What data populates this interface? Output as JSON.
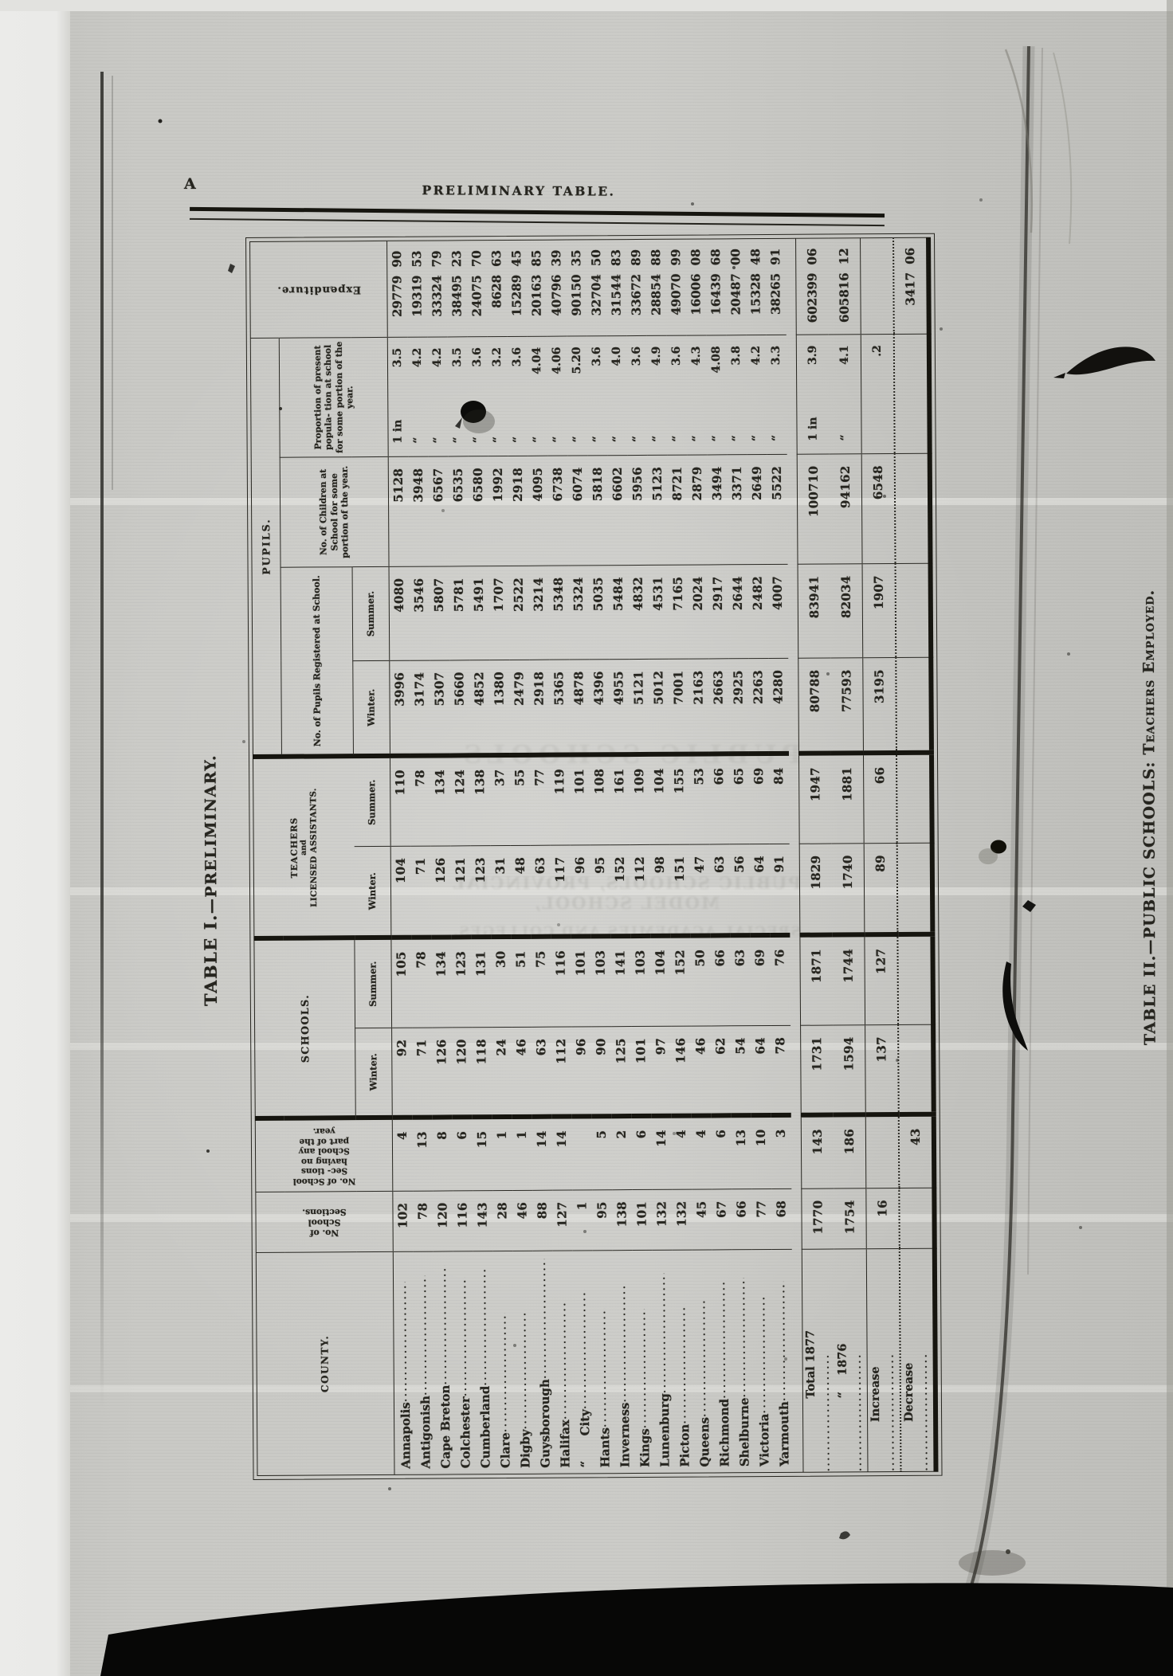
{
  "page": {
    "corner_letter": "A",
    "running_title": "PRELIMINARY TABLE.",
    "table1_title_main": "TABLE I.",
    "table1_title_rest": "—PRELIMINARY.",
    "table2_title_main": "TABLE II.",
    "table2_title_rest": "—PUBLIC SCHOOLS:  ",
    "table2_title_smallcaps": "Teachers Employed.",
    "bleedthrough": {
      "big": "PUBLIC SCHOOLS",
      "line1": "PUBLIC SCHOOLS, PROVINCIAL MODEL SCHOOL,",
      "line2": "SPECIAL ACADEMIES AND COLLEGES."
    }
  },
  "table": {
    "headers": {
      "county": "COUNTY.",
      "sections": "No. of School Sections.",
      "no_school": "No. of School Sec- tions having no School any part of the year.",
      "schools": "SCHOOLS.",
      "teachers_l1": "TEACHERS",
      "teachers_l2": "and",
      "teachers_l3": "LICENSED ASSISTANTS.",
      "pupils": "PUPILS.",
      "registered": "No. of Pupils Registered at School.",
      "children": "No. of Children at School for some portion of the year.",
      "proportion": "Proportion of present popula- tion at school for some portion of the year.",
      "expenditure": "Expenditure.",
      "winter": "Winter.",
      "summer": "Summer."
    },
    "rows": [
      {
        "name": "Annapolis",
        "sec": "102",
        "ns": "4",
        "sw": "92",
        "ss": "105",
        "tw": "104",
        "ts": "110",
        "pw": "3996",
        "ps": "4080",
        "ch": "5128",
        "pl": "1 in",
        "pv": "3.5",
        "ed": "29779",
        "ec": "90"
      },
      {
        "name": "Antigonish",
        "sec": "78",
        "ns": "13",
        "sw": "71",
        "ss": "78",
        "tw": "71",
        "ts": "78",
        "pw": "3174",
        "ps": "3546",
        "ch": "3948",
        "pl": "“",
        "pv": "4.2",
        "ed": "19319",
        "ec": "53"
      },
      {
        "name": "Cape Breton",
        "sec": "120",
        "ns": "8",
        "sw": "126",
        "ss": "134",
        "tw": "126",
        "ts": "134",
        "pw": "5307",
        "ps": "5807",
        "ch": "6567",
        "pl": "“",
        "pv": "4.2",
        "ed": "33324",
        "ec": "79"
      },
      {
        "name": "Colchester",
        "sec": "116",
        "ns": "6",
        "sw": "120",
        "ss": "123",
        "tw": "121",
        "ts": "124",
        "pw": "5660",
        "ps": "5781",
        "ch": "6535",
        "pl": "“",
        "pv": "3.5",
        "ed": "38495",
        "ec": "23"
      },
      {
        "name": "Cumberland",
        "sec": "143",
        "ns": "15",
        "sw": "118",
        "ss": "131",
        "tw": "123",
        "ts": "138",
        "pw": "4852",
        "ps": "5491",
        "ch": "6580",
        "pl": "“",
        "pv": "3.6",
        "ed": "24075",
        "ec": "70"
      },
      {
        "name": "Clare",
        "sec": "28",
        "ns": "1",
        "sw": "24",
        "ss": "30",
        "tw": "31",
        "ts": "37",
        "pw": "1380",
        "ps": "1707",
        "ch": "1992",
        "pl": "“",
        "pv": "3.2",
        "ed": "8628",
        "ec": "63"
      },
      {
        "name": "Digby",
        "sec": "46",
        "ns": "1",
        "sw": "46",
        "ss": "51",
        "tw": "48",
        "ts": "55",
        "pw": "2479",
        "ps": "2522",
        "ch": "2918",
        "pl": "“",
        "pv": "3.6",
        "ed": "15289",
        "ec": "45"
      },
      {
        "name": "Guysborough",
        "sec": "88",
        "ns": "14",
        "sw": "63",
        "ss": "75",
        "tw": "63",
        "ts": "77",
        "pw": "2918",
        "ps": "3214",
        "ch": "4095",
        "pl": "“",
        "pv": "4.04",
        "ed": "20163",
        "ec": "85"
      },
      {
        "name": "Halifax",
        "sec": "127",
        "ns": "14",
        "sw": "112",
        "ss": "116",
        "tw": "117",
        "ts": "119",
        "pw": "5365",
        "ps": "5348",
        "ch": "6738",
        "pl": "“",
        "pv": "4.06",
        "ed": "40796",
        "ec": "39"
      },
      {
        "name": "“      City",
        "sec": "1",
        "ns": "",
        "sw": "96",
        "ss": "101",
        "tw": "96",
        "ts": "101",
        "pw": "4878",
        "ps": "5324",
        "ch": "6074",
        "pl": "“",
        "pv": "5.20",
        "ed": "90150",
        "ec": "35"
      },
      {
        "name": "Hants",
        "sec": "95",
        "ns": "5",
        "sw": "90",
        "ss": "103",
        "tw": "95",
        "ts": "108",
        "pw": "4396",
        "ps": "5035",
        "ch": "5818",
        "pl": "“",
        "pv": "3.6",
        "ed": "32704",
        "ec": "50"
      },
      {
        "name": "Inverness",
        "sec": "138",
        "ns": "2",
        "sw": "125",
        "ss": "141",
        "tw": "152",
        "ts": "161",
        "pw": "4955",
        "ps": "5484",
        "ch": "6602",
        "pl": "“",
        "pv": "4.0",
        "ed": "31544",
        "ec": "83"
      },
      {
        "name": "Kings",
        "sec": "101",
        "ns": "6",
        "sw": "101",
        "ss": "103",
        "tw": "112",
        "ts": "109",
        "pw": "5121",
        "ps": "4832",
        "ch": "5956",
        "pl": "“",
        "pv": "3.6",
        "ed": "33672",
        "ec": "89"
      },
      {
        "name": "Lunenburg",
        "sec": "132",
        "ns": "14",
        "sw": "97",
        "ss": "104",
        "tw": "98",
        "ts": "104",
        "pw": "5012",
        "ps": "4531",
        "ch": "5123",
        "pl": "“",
        "pv": "4.9",
        "ed": "28854",
        "ec": "88"
      },
      {
        "name": "Picton",
        "sec": "132",
        "ns": "4",
        "sw": "146",
        "ss": "152",
        "tw": "151",
        "ts": "155",
        "pw": "7001",
        "ps": "7165",
        "ch": "8721",
        "pl": "“",
        "pv": "3.6",
        "ed": "49070",
        "ec": "99"
      },
      {
        "name": "Queens",
        "sec": "45",
        "ns": "4",
        "sw": "46",
        "ss": "50",
        "tw": "47",
        "ts": "53",
        "pw": "2163",
        "ps": "2024",
        "ch": "2879",
        "pl": "“",
        "pv": "4.3",
        "ed": "16006",
        "ec": "08"
      },
      {
        "name": "Richmond",
        "sec": "67",
        "ns": "6",
        "sw": "62",
        "ss": "66",
        "tw": "63",
        "ts": "66",
        "pw": "2663",
        "ps": "2917",
        "ch": "3494",
        "pl": "“",
        "pv": "4.08",
        "ed": "16439",
        "ec": "68"
      },
      {
        "name": "Shelburne",
        "sec": "66",
        "ns": "13",
        "sw": "54",
        "ss": "63",
        "tw": "56",
        "ts": "65",
        "pw": "2925",
        "ps": "2644",
        "ch": "3371",
        "pl": "“",
        "pv": "3.8",
        "ed": "20487",
        "ec": "00"
      },
      {
        "name": "Victoria",
        "sec": "77",
        "ns": "10",
        "sw": "64",
        "ss": "69",
        "tw": "64",
        "ts": "69",
        "pw": "2263",
        "ps": "2482",
        "ch": "2649",
        "pl": "“",
        "pv": "4.2",
        "ed": "15328",
        "ec": "48"
      },
      {
        "name": "Yarmouth",
        "sec": "68",
        "ns": "3",
        "sw": "78",
        "ss": "76",
        "tw": "91",
        "ts": "84",
        "pw": "4280",
        "ps": "4007",
        "ch": "5522",
        "pl": "“",
        "pv": "3.3",
        "ed": "38265",
        "ec": "91"
      }
    ],
    "totals": [
      {
        "name": "Total 1877",
        "sec": "1770",
        "ns": "143",
        "sw": "1731",
        "ss": "1871",
        "tw": "1829",
        "ts": "1947",
        "pw": "80788",
        "ps": "83941",
        "ch": "100710",
        "pl": "1 in",
        "pv": "3.9",
        "ed": "602399",
        "ec": "06"
      },
      {
        "name": "“    1876",
        "sec": "1754",
        "ns": "186",
        "sw": "1594",
        "ss": "1744",
        "tw": "1740",
        "ts": "1881",
        "pw": "77593",
        "ps": "82034",
        "ch": "94162",
        "pl": "“",
        "pv": "4.1",
        "ed": "605816",
        "ec": "12"
      }
    ],
    "changes": [
      {
        "name": "Increase",
        "sec": "16",
        "ns": "",
        "sw": "137",
        "ss": "127",
        "tw": "89",
        "ts": "66",
        "pw": "3195",
        "ps": "1907",
        "ch": "6548",
        "pl": "",
        "pv": ".2",
        "ed": "",
        "ec": ""
      },
      {
        "name": "Decrease",
        "sec": "",
        "ns": "43",
        "sw": "",
        "ss": "",
        "tw": "",
        "ts": "",
        "pw": "",
        "ps": "",
        "ch": "",
        "pl": "",
        "pv": "",
        "ed": "3417",
        "ec": "06"
      }
    ]
  }
}
